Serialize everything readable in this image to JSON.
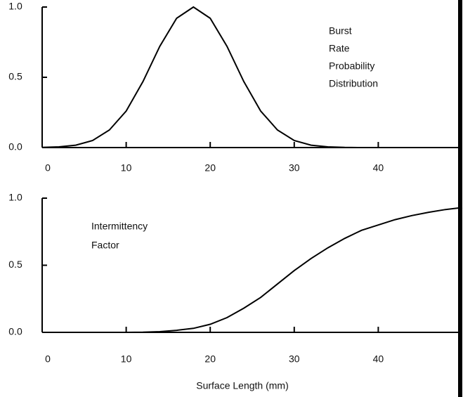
{
  "chart_data": [
    {
      "type": "line",
      "x": [
        0,
        2,
        4,
        6,
        8,
        10,
        12,
        14,
        16,
        18,
        20,
        22,
        24,
        26,
        28,
        30,
        32,
        34,
        36,
        38,
        40,
        42,
        44,
        46,
        48,
        50
      ],
      "values": [
        0.001,
        0.005,
        0.017,
        0.05,
        0.125,
        0.26,
        0.47,
        0.72,
        0.92,
        1,
        0.92,
        0.72,
        0.47,
        0.26,
        0.125,
        0.05,
        0.017,
        0.005,
        0.001,
        0,
        0,
        0,
        0,
        0,
        0,
        0
      ],
      "color": "#000000",
      "xlim": [
        0,
        50
      ],
      "ylim": [
        0,
        1
      ],
      "xticks": [
        0,
        10,
        20,
        30,
        40
      ],
      "yticks": [
        {
          "value": 0,
          "label": "0.0"
        },
        {
          "value": 0.5,
          "label": "0.5"
        },
        {
          "value": 1,
          "label": "1.0"
        }
      ],
      "annotation": [
        "Burst",
        "Rate",
        "Probability",
        "Distribution"
      ]
    },
    {
      "type": "line",
      "x": [
        0,
        2,
        4,
        6,
        8,
        10,
        12,
        14,
        16,
        18,
        20,
        22,
        24,
        26,
        28,
        30,
        32,
        34,
        36,
        38,
        40,
        42,
        44,
        46,
        48,
        50
      ],
      "values": [
        0,
        0,
        0,
        0,
        0,
        0,
        0.001,
        0.005,
        0.015,
        0.03,
        0.06,
        0.11,
        0.18,
        0.26,
        0.36,
        0.46,
        0.55,
        0.63,
        0.7,
        0.76,
        0.8,
        0.84,
        0.87,
        0.895,
        0.915,
        0.93
      ],
      "color": "#000000",
      "xlim": [
        0,
        50
      ],
      "ylim": [
        0,
        1
      ],
      "xticks": [
        0,
        10,
        20,
        30,
        40
      ],
      "yticks": [
        {
          "value": 0,
          "label": "0.0"
        },
        {
          "value": 0.5,
          "label": "0.5"
        },
        {
          "value": 1,
          "label": "1.0"
        }
      ],
      "annotation": [
        "Intermittency",
        "Factor"
      ],
      "xlabel": "Surface Length (mm)"
    }
  ]
}
